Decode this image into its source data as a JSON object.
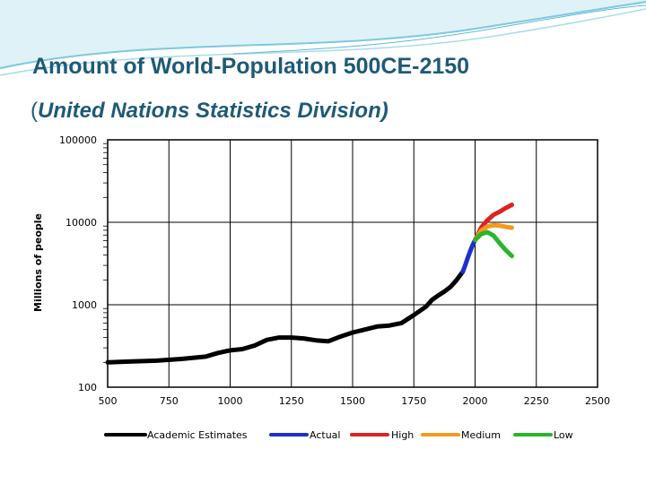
{
  "slide": {
    "title": "Amount of World-Population 500CE-2150",
    "subtitle_open": "(",
    "subtitle_main": "United Nations Statistics Division",
    "subtitle_close": ")",
    "title_color": "#1e5a78",
    "accent_color": "#5fb8d8"
  },
  "chart_data": {
    "type": "line",
    "title": "",
    "xlabel": "",
    "ylabel": "Millions of people",
    "xlim": [
      500,
      2500
    ],
    "ylim": [
      100,
      100000
    ],
    "yscale": "log",
    "grid": true,
    "legend_position": "bottom",
    "x_ticks": [
      "500",
      "750",
      "1000",
      "1250",
      "1500",
      "1750",
      "2000",
      "2250",
      "2500"
    ],
    "y_ticks": [
      "100",
      "1000",
      "10000",
      "100000"
    ],
    "series": [
      {
        "name": "Academic Estimates",
        "color": "#000000",
        "x": [
          500,
          600,
          700,
          800,
          900,
          950,
          1000,
          1050,
          1100,
          1150,
          1200,
          1250,
          1300,
          1350,
          1400,
          1450,
          1500,
          1550,
          1600,
          1650,
          1700,
          1750,
          1800,
          1825,
          1850,
          1875,
          1900,
          1925,
          1950
        ],
        "y": [
          200,
          205,
          210,
          220,
          235,
          260,
          280,
          290,
          320,
          375,
          400,
          400,
          390,
          370,
          360,
          410,
          460,
          500,
          545,
          560,
          600,
          750,
          950,
          1150,
          1300,
          1450,
          1650,
          2000,
          2520
        ]
      },
      {
        "name": "Actual",
        "color": "#1e2fd0",
        "x": [
          1950,
          1960,
          1970,
          1980,
          1990,
          2000
        ],
        "y": [
          2520,
          3030,
          3700,
          4440,
          5300,
          6100
        ]
      },
      {
        "name": "High",
        "color": "#dd2222",
        "x": [
          2000,
          2025,
          2050,
          2075,
          2100,
          2125,
          2150
        ],
        "y": [
          6100,
          8600,
          10600,
          12300,
          13400,
          14900,
          16300
        ]
      },
      {
        "name": "Medium",
        "color": "#f39a1e",
        "x": [
          2000,
          2025,
          2050,
          2075,
          2100,
          2125,
          2150
        ],
        "y": [
          6100,
          7900,
          8900,
          9200,
          9100,
          8800,
          8600
        ]
      },
      {
        "name": "Low",
        "color": "#2ab52a",
        "x": [
          2000,
          2025,
          2050,
          2075,
          2100,
          2125,
          2150
        ],
        "y": [
          6100,
          7200,
          7600,
          6900,
          5600,
          4600,
          3900
        ]
      }
    ]
  }
}
